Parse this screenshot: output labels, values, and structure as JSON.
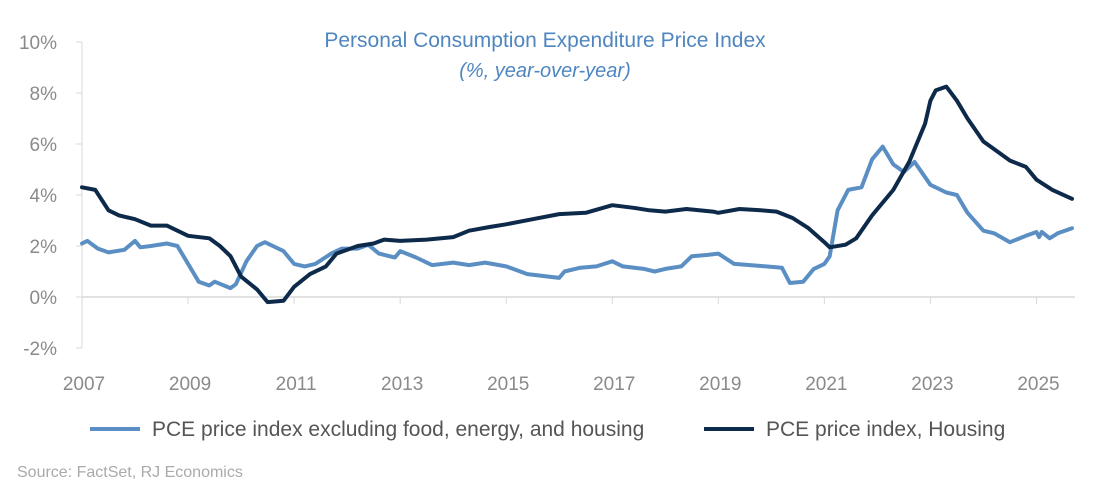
{
  "chart_data": {
    "type": "line",
    "title": "Personal Consumption Expenditure Price Index",
    "subtitle": "(%, year-over-year)",
    "source": "Source: FactSet, RJ Economics",
    "xlim": [
      2007,
      2025.67
    ],
    "ylim": [
      -2,
      10
    ],
    "x_ticks": [
      "2007",
      "2009",
      "2011",
      "2013",
      "2015",
      "2017",
      "2019",
      "2021",
      "2023",
      "2025"
    ],
    "y_ticks": [
      "-2%",
      "0%",
      "2%",
      "4%",
      "6%",
      "8%",
      "10%"
    ],
    "grid": false,
    "legend": "bottom",
    "colors": {
      "core": "#5b8fc4",
      "housing": "#0d2a4a",
      "title": "#4f86bf"
    },
    "series": [
      {
        "name": "PCE price index excluding food, energy, and housing",
        "color": "#5b8fc4",
        "points": [
          [
            2007.0,
            2.1
          ],
          [
            2007.1,
            2.2
          ],
          [
            2007.3,
            1.9
          ],
          [
            2007.5,
            1.75
          ],
          [
            2007.8,
            1.85
          ],
          [
            2008.0,
            2.2
          ],
          [
            2008.1,
            1.95
          ],
          [
            2008.3,
            2.0
          ],
          [
            2008.6,
            2.1
          ],
          [
            2008.8,
            2.0
          ],
          [
            2009.0,
            1.3
          ],
          [
            2009.2,
            0.6
          ],
          [
            2009.4,
            0.45
          ],
          [
            2009.5,
            0.6
          ],
          [
            2009.8,
            0.35
          ],
          [
            2009.9,
            0.5
          ],
          [
            2010.1,
            1.4
          ],
          [
            2010.3,
            2.0
          ],
          [
            2010.45,
            2.15
          ],
          [
            2010.6,
            2.0
          ],
          [
            2010.8,
            1.8
          ],
          [
            2011.0,
            1.3
          ],
          [
            2011.2,
            1.2
          ],
          [
            2011.4,
            1.3
          ],
          [
            2011.7,
            1.7
          ],
          [
            2011.9,
            1.9
          ],
          [
            2012.2,
            1.9
          ],
          [
            2012.4,
            2.05
          ],
          [
            2012.6,
            1.7
          ],
          [
            2012.9,
            1.55
          ],
          [
            2013.0,
            1.8
          ],
          [
            2013.3,
            1.55
          ],
          [
            2013.6,
            1.25
          ],
          [
            2014.0,
            1.35
          ],
          [
            2014.3,
            1.25
          ],
          [
            2014.6,
            1.35
          ],
          [
            2015.0,
            1.2
          ],
          [
            2015.4,
            0.9
          ],
          [
            2015.8,
            0.8
          ],
          [
            2016.0,
            0.75
          ],
          [
            2016.1,
            1.0
          ],
          [
            2016.4,
            1.15
          ],
          [
            2016.7,
            1.2
          ],
          [
            2017.0,
            1.4
          ],
          [
            2017.2,
            1.2
          ],
          [
            2017.6,
            1.1
          ],
          [
            2017.8,
            1.0
          ],
          [
            2018.0,
            1.1
          ],
          [
            2018.3,
            1.2
          ],
          [
            2018.5,
            1.6
          ],
          [
            2018.8,
            1.65
          ],
          [
            2019.0,
            1.7
          ],
          [
            2019.3,
            1.3
          ],
          [
            2019.6,
            1.25
          ],
          [
            2019.9,
            1.2
          ],
          [
            2020.2,
            1.15
          ],
          [
            2020.35,
            0.55
          ],
          [
            2020.6,
            0.6
          ],
          [
            2020.8,
            1.1
          ],
          [
            2021.0,
            1.3
          ],
          [
            2021.1,
            1.6
          ],
          [
            2021.25,
            3.4
          ],
          [
            2021.45,
            4.2
          ],
          [
            2021.7,
            4.3
          ],
          [
            2021.9,
            5.4
          ],
          [
            2022.1,
            5.9
          ],
          [
            2022.3,
            5.2
          ],
          [
            2022.5,
            4.9
          ],
          [
            2022.7,
            5.3
          ],
          [
            2023.0,
            4.4
          ],
          [
            2023.3,
            4.1
          ],
          [
            2023.5,
            4.0
          ],
          [
            2023.7,
            3.3
          ],
          [
            2024.0,
            2.6
          ],
          [
            2024.2,
            2.5
          ],
          [
            2024.5,
            2.15
          ],
          [
            2024.8,
            2.4
          ],
          [
            2025.0,
            2.55
          ],
          [
            2025.05,
            2.35
          ],
          [
            2025.1,
            2.55
          ],
          [
            2025.25,
            2.3
          ],
          [
            2025.4,
            2.5
          ],
          [
            2025.67,
            2.7
          ]
        ]
      },
      {
        "name": "PCE price index, Housing",
        "color": "#0d2a4a",
        "points": [
          [
            2007.0,
            4.3
          ],
          [
            2007.25,
            4.2
          ],
          [
            2007.5,
            3.4
          ],
          [
            2007.7,
            3.2
          ],
          [
            2008.0,
            3.05
          ],
          [
            2008.3,
            2.8
          ],
          [
            2008.6,
            2.8
          ],
          [
            2009.0,
            2.4
          ],
          [
            2009.4,
            2.3
          ],
          [
            2009.6,
            2.0
          ],
          [
            2009.8,
            1.6
          ],
          [
            2010.0,
            0.8
          ],
          [
            2010.3,
            0.3
          ],
          [
            2010.5,
            -0.2
          ],
          [
            2010.8,
            -0.15
          ],
          [
            2011.0,
            0.4
          ],
          [
            2011.3,
            0.9
          ],
          [
            2011.6,
            1.2
          ],
          [
            2011.8,
            1.7
          ],
          [
            2012.2,
            2.0
          ],
          [
            2012.5,
            2.1
          ],
          [
            2012.7,
            2.25
          ],
          [
            2013.0,
            2.2
          ],
          [
            2013.5,
            2.25
          ],
          [
            2014.0,
            2.35
          ],
          [
            2014.3,
            2.6
          ],
          [
            2014.7,
            2.75
          ],
          [
            2015.0,
            2.85
          ],
          [
            2015.5,
            3.05
          ],
          [
            2016.0,
            3.25
          ],
          [
            2016.5,
            3.3
          ],
          [
            2017.0,
            3.6
          ],
          [
            2017.4,
            3.5
          ],
          [
            2017.7,
            3.4
          ],
          [
            2018.0,
            3.35
          ],
          [
            2018.4,
            3.45
          ],
          [
            2018.9,
            3.35
          ],
          [
            2019.0,
            3.3
          ],
          [
            2019.4,
            3.45
          ],
          [
            2019.8,
            3.4
          ],
          [
            2020.1,
            3.35
          ],
          [
            2020.4,
            3.1
          ],
          [
            2020.7,
            2.7
          ],
          [
            2021.0,
            2.15
          ],
          [
            2021.1,
            1.95
          ],
          [
            2021.4,
            2.05
          ],
          [
            2021.6,
            2.3
          ],
          [
            2021.9,
            3.2
          ],
          [
            2022.3,
            4.2
          ],
          [
            2022.6,
            5.3
          ],
          [
            2022.9,
            6.8
          ],
          [
            2023.0,
            7.7
          ],
          [
            2023.1,
            8.1
          ],
          [
            2023.3,
            8.25
          ],
          [
            2023.5,
            7.7
          ],
          [
            2023.7,
            7.0
          ],
          [
            2024.0,
            6.1
          ],
          [
            2024.2,
            5.8
          ],
          [
            2024.5,
            5.35
          ],
          [
            2024.8,
            5.1
          ],
          [
            2025.0,
            4.6
          ],
          [
            2025.3,
            4.2
          ],
          [
            2025.67,
            3.85
          ]
        ]
      }
    ]
  }
}
